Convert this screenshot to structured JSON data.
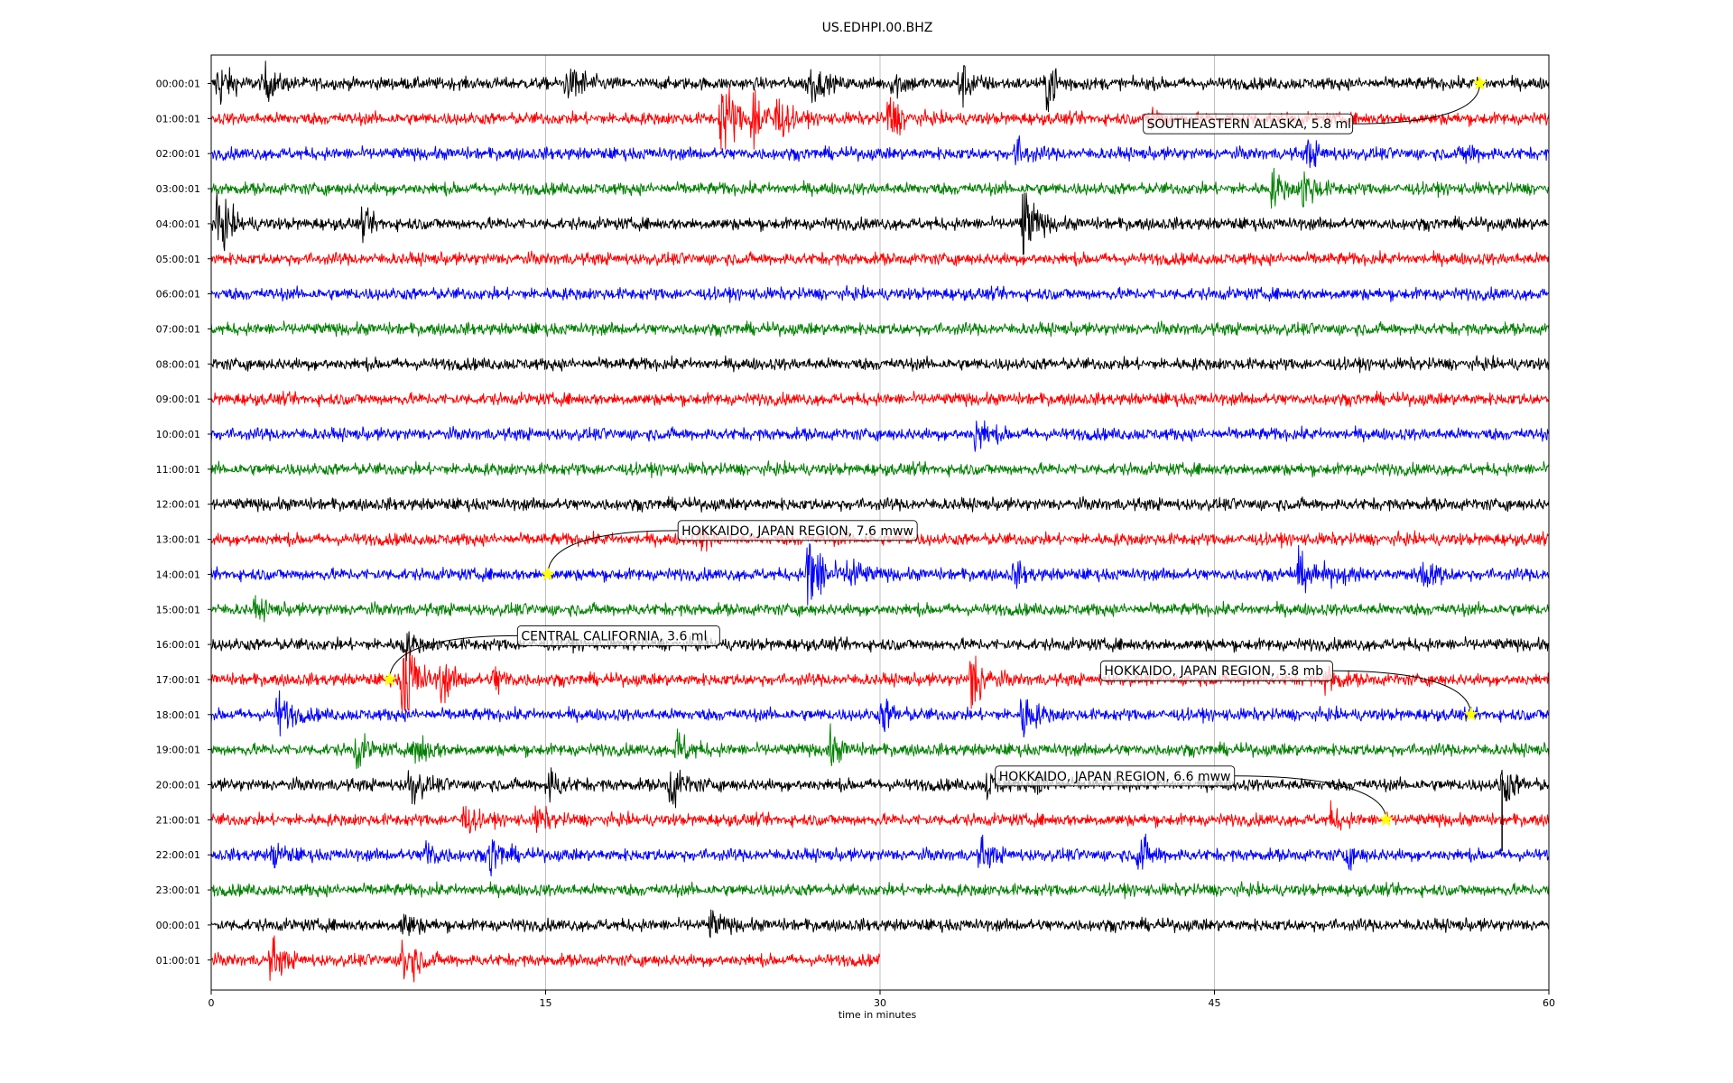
{
  "chart_data": {
    "type": "line",
    "title": "US.EDHPI.00.BHZ",
    "xlabel": "time in minutes",
    "xlim": [
      0,
      60
    ],
    "x_ticks": [
      "0",
      "15",
      "30",
      "45",
      "60"
    ],
    "grid": "vertical",
    "row_colors": [
      "#000000",
      "#ff0000",
      "#0000ff",
      "#008000"
    ],
    "rows": [
      {
        "label": "00:00:01",
        "end_minute": 60
      },
      {
        "label": "01:00:01",
        "end_minute": 60
      },
      {
        "label": "02:00:01",
        "end_minute": 60
      },
      {
        "label": "03:00:01",
        "end_minute": 60
      },
      {
        "label": "04:00:01",
        "end_minute": 60
      },
      {
        "label": "05:00:01",
        "end_minute": 60
      },
      {
        "label": "06:00:01",
        "end_minute": 60
      },
      {
        "label": "07:00:01",
        "end_minute": 60
      },
      {
        "label": "08:00:01",
        "end_minute": 60
      },
      {
        "label": "09:00:01",
        "end_minute": 60
      },
      {
        "label": "10:00:01",
        "end_minute": 60
      },
      {
        "label": "11:00:01",
        "end_minute": 60
      },
      {
        "label": "12:00:01",
        "end_minute": 60
      },
      {
        "label": "13:00:01",
        "end_minute": 60
      },
      {
        "label": "14:00:01",
        "end_minute": 60
      },
      {
        "label": "15:00:01",
        "end_minute": 60
      },
      {
        "label": "16:00:01",
        "end_minute": 60
      },
      {
        "label": "17:00:01",
        "end_minute": 60
      },
      {
        "label": "18:00:01",
        "end_minute": 60
      },
      {
        "label": "19:00:01",
        "end_minute": 60
      },
      {
        "label": "20:00:01",
        "end_minute": 60
      },
      {
        "label": "21:00:01",
        "end_minute": 60
      },
      {
        "label": "22:00:01",
        "end_minute": 60
      },
      {
        "label": "23:00:01",
        "end_minute": 60
      },
      {
        "label": "00:00:01",
        "end_minute": 60
      },
      {
        "label": "01:00:01",
        "end_minute": 30
      }
    ],
    "bursts": [
      {
        "row": 0,
        "minute": 0.3,
        "amp": 1.2
      },
      {
        "row": 0,
        "minute": 2.4,
        "amp": 0.8
      },
      {
        "row": 0,
        "minute": 15.9,
        "amp": 0.6
      },
      {
        "row": 0,
        "minute": 16.4,
        "amp": 0.6
      },
      {
        "row": 0,
        "minute": 26.8,
        "amp": 1.1
      },
      {
        "row": 0,
        "minute": 30.6,
        "amp": 0.7
      },
      {
        "row": 0,
        "minute": 33.6,
        "amp": 1.1
      },
      {
        "row": 0,
        "minute": 37.5,
        "amp": 1.3
      },
      {
        "row": 1,
        "minute": 22.9,
        "amp": 2.6
      },
      {
        "row": 1,
        "minute": 24.3,
        "amp": 1.8
      },
      {
        "row": 1,
        "minute": 25.3,
        "amp": 1.1
      },
      {
        "row": 1,
        "minute": 30.4,
        "amp": 1.2
      },
      {
        "row": 1,
        "minute": 42.1,
        "amp": 0.7
      },
      {
        "row": 2,
        "minute": 36.1,
        "amp": 0.7
      },
      {
        "row": 2,
        "minute": 49.2,
        "amp": 0.6
      },
      {
        "row": 2,
        "minute": 56.2,
        "amp": 0.5
      },
      {
        "row": 3,
        "minute": 47.6,
        "amp": 0.8
      },
      {
        "row": 3,
        "minute": 49.0,
        "amp": 1.0
      },
      {
        "row": 4,
        "minute": 0.3,
        "amp": 1.6
      },
      {
        "row": 4,
        "minute": 6.8,
        "amp": 0.5
      },
      {
        "row": 4,
        "minute": 36.4,
        "amp": 2.0
      },
      {
        "row": 10,
        "minute": 34.3,
        "amp": 0.9
      },
      {
        "row": 13,
        "minute": 21.9,
        "amp": 0.5
      },
      {
        "row": 14,
        "minute": 26.8,
        "amp": 3.0
      },
      {
        "row": 14,
        "minute": 28.6,
        "amp": 1.0
      },
      {
        "row": 14,
        "minute": 36.0,
        "amp": 0.5
      },
      {
        "row": 14,
        "minute": 48.7,
        "amp": 0.7
      },
      {
        "row": 14,
        "minute": 54.3,
        "amp": 0.7
      },
      {
        "row": 15,
        "minute": 2.0,
        "amp": 0.4
      },
      {
        "row": 16,
        "minute": 8.6,
        "amp": 0.6
      },
      {
        "row": 17,
        "minute": 8.6,
        "amp": 3.2
      },
      {
        "row": 17,
        "minute": 10.3,
        "amp": 1.0
      },
      {
        "row": 17,
        "minute": 12.7,
        "amp": 0.7
      },
      {
        "row": 17,
        "minute": 34.1,
        "amp": 1.8
      },
      {
        "row": 17,
        "minute": 50.0,
        "amp": 0.7
      },
      {
        "row": 18,
        "minute": 3.0,
        "amp": 1.1
      },
      {
        "row": 18,
        "minute": 30.1,
        "amp": 0.8
      },
      {
        "row": 18,
        "minute": 36.4,
        "amp": 1.2
      },
      {
        "row": 19,
        "minute": 6.5,
        "amp": 0.8
      },
      {
        "row": 19,
        "minute": 9.2,
        "amp": 1.0
      },
      {
        "row": 19,
        "minute": 20.9,
        "amp": 0.9
      },
      {
        "row": 19,
        "minute": 27.7,
        "amp": 0.8
      },
      {
        "row": 20,
        "minute": 8.9,
        "amp": 1.0
      },
      {
        "row": 20,
        "minute": 15.1,
        "amp": 0.9
      },
      {
        "row": 20,
        "minute": 20.6,
        "amp": 1.2
      },
      {
        "row": 20,
        "minute": 34.8,
        "amp": 0.6
      },
      {
        "row": 20,
        "minute": 37.1,
        "amp": 0.7
      },
      {
        "row": 20,
        "minute": 57.9,
        "amp": 1.0
      },
      {
        "row": 21,
        "minute": 11.3,
        "amp": 0.7
      },
      {
        "row": 21,
        "minute": 14.6,
        "amp": 0.6
      },
      {
        "row": 21,
        "minute": 50.2,
        "amp": 0.5
      },
      {
        "row": 22,
        "minute": 2.8,
        "amp": 0.6
      },
      {
        "row": 22,
        "minute": 9.6,
        "amp": 0.8
      },
      {
        "row": 22,
        "minute": 12.5,
        "amp": 1.0
      },
      {
        "row": 22,
        "minute": 34.5,
        "amp": 0.7
      },
      {
        "row": 22,
        "minute": 41.6,
        "amp": 1.0
      },
      {
        "row": 22,
        "minute": 50.9,
        "amp": 0.5
      },
      {
        "row": 24,
        "minute": 8.6,
        "amp": 0.7
      },
      {
        "row": 24,
        "minute": 22.4,
        "amp": 0.6
      },
      {
        "row": 25,
        "minute": 2.7,
        "amp": 1.0
      },
      {
        "row": 25,
        "minute": 8.6,
        "amp": 1.6
      }
    ],
    "long_period_waves": [
      {
        "row": 14,
        "start": 47.4,
        "end": 52.0,
        "amp": 0.7
      },
      {
        "row": 14,
        "start": 53.5,
        "end": 56.0,
        "amp": 0.5
      }
    ],
    "spike": {
      "row_start": 20,
      "row_end": 22,
      "minute": 57.9
    },
    "events": [
      {
        "label": "SOUTHEASTERN ALASKA, 5.8 ml",
        "row": 0,
        "minute": 56.9,
        "label_minute": 51.2,
        "label_row": 1.15,
        "align": "right"
      },
      {
        "label": "HOKKAIDO, JAPAN REGION, 7.6 mww",
        "row": 14,
        "minute": 15.1,
        "label_minute": 21.1,
        "label_row": 12.75,
        "align": "left"
      },
      {
        "label": "CENTRAL CALIFORNIA, 3.6 ml",
        "row": 17,
        "minute": 8.0,
        "label_minute": 13.9,
        "label_row": 15.75,
        "align": "left"
      },
      {
        "label": "HOKKAIDO, JAPAN REGION, 5.8 mb",
        "row": 18,
        "minute": 56.5,
        "label_minute": 50.3,
        "label_row": 16.75,
        "align": "right"
      },
      {
        "label": "HOKKAIDO, JAPAN REGION, 6.6 mww",
        "row": 21,
        "minute": 52.7,
        "label_minute": 45.9,
        "label_row": 19.75,
        "align": "right"
      }
    ],
    "event_marker_color": "#ffff00"
  }
}
